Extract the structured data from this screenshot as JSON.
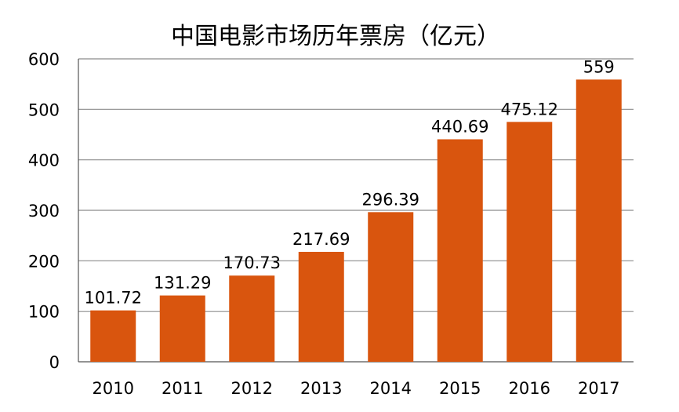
{
  "chart_data": {
    "type": "bar",
    "title": "中国电影市场历年票房（亿元）",
    "categories": [
      "2010",
      "2011",
      "2012",
      "2013",
      "2014",
      "2015",
      "2016",
      "2017"
    ],
    "values": [
      101.72,
      131.29,
      170.73,
      217.69,
      296.39,
      440.69,
      475.12,
      559
    ],
    "data_labels": [
      "101.72",
      "131.29",
      "170.73",
      "217.69",
      "296.39",
      "440.69",
      "475.12",
      "559"
    ],
    "xlabel": "",
    "ylabel": "",
    "ylim": [
      0,
      600
    ],
    "yticks": [
      0,
      100,
      200,
      300,
      400,
      500,
      600
    ],
    "grid": true,
    "legend": "none",
    "bar_color": "#d9550e",
    "grid_color": "#8c8c8c"
  }
}
